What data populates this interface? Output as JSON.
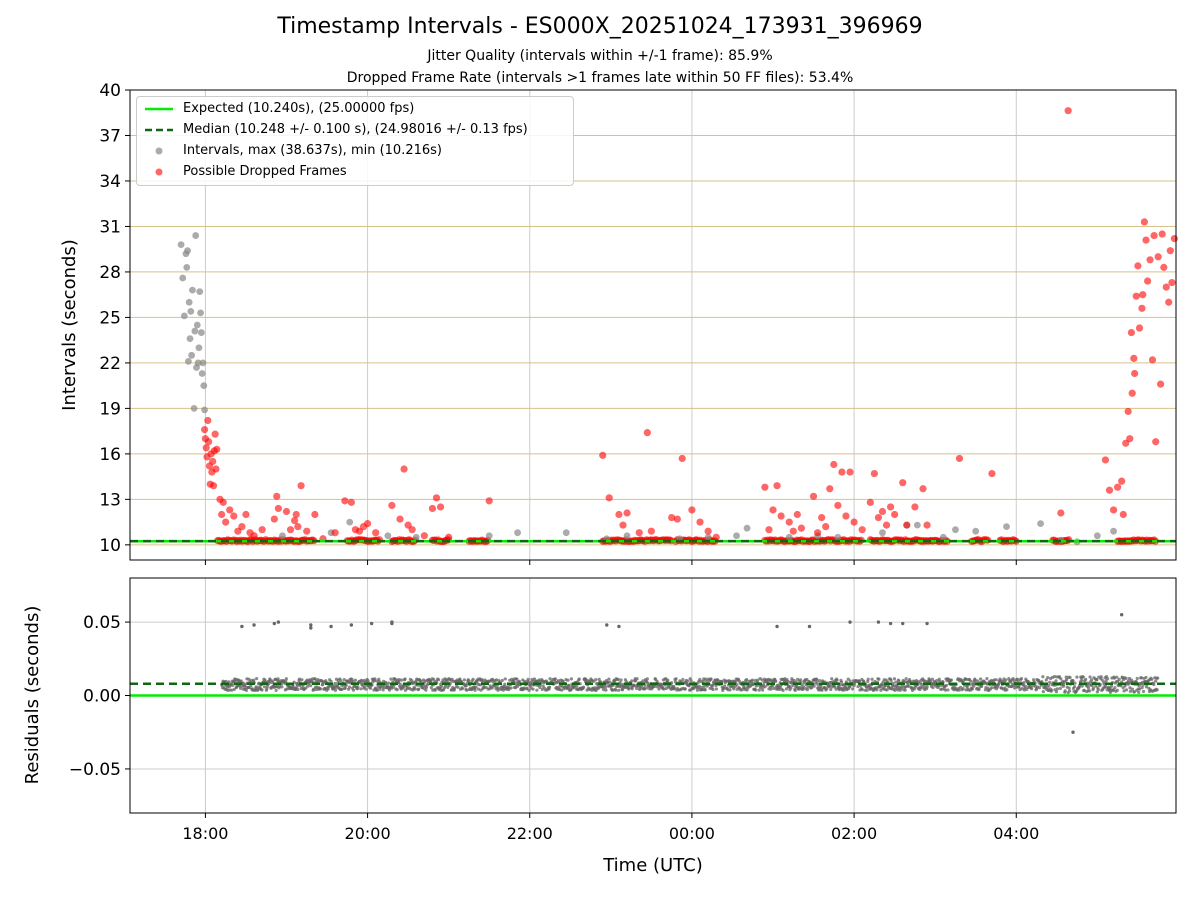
{
  "title": "Timestamp Intervals - ES000X_20251024_173931_396969",
  "subtitle_jitter": "Jitter Quality (intervals within +/-1 frame): 85.9%",
  "subtitle_dropped": "Dropped Frame Rate (intervals >1 frames late within 50 FF files): 53.4%",
  "colors": {
    "expected": "#00ee00",
    "median": "#116611",
    "intervals": "#888888",
    "dropped": "#ff0000",
    "residuals": "#666666",
    "hgrid_top": "#d6c288",
    "grid": "#cccccc"
  },
  "chart_data": [
    {
      "type": "scatter",
      "panel": "intervals",
      "title": "Timestamp Intervals - ES000X_20251024_173931_396969",
      "ylabel": "Intervals (seconds)",
      "xlabel": "",
      "ylim": [
        9.0,
        40.0
      ],
      "xlim_hours": [
        17.07,
        29.97
      ],
      "yticks": [
        10,
        13,
        16,
        19,
        22,
        25,
        28,
        31,
        34,
        37,
        40
      ],
      "grid": "on",
      "legend_placement": "top-left",
      "legend": {
        "expected": "Expected (10.240s), (25.00000 fps)",
        "median": "Median (10.248 +/- 0.100 s), (24.98016 +/- 0.13 fps)",
        "intervals": "Intervals, max (38.637s), min (10.216s)",
        "dropped": "Possible Dropped Frames"
      },
      "expected_value": 10.24,
      "median_value": 10.248,
      "series": [
        {
          "name": "Intervals, max (38.637s), min (10.216s)",
          "points": [
            [
              17.7,
              29.8
            ],
            [
              17.72,
              27.6
            ],
            [
              17.74,
              25.1
            ],
            [
              17.76,
              29.2
            ],
            [
              17.77,
              28.3
            ],
            [
              17.79,
              22.1
            ],
            [
              17.8,
              26.0
            ],
            [
              17.82,
              25.4
            ],
            [
              17.83,
              22.5
            ],
            [
              17.84,
              26.8
            ],
            [
              17.86,
              19.0
            ],
            [
              17.87,
              24.1
            ],
            [
              17.88,
              30.4
            ],
            [
              17.9,
              24.5
            ],
            [
              17.91,
              22.0
            ],
            [
              17.93,
              26.7
            ],
            [
              17.94,
              25.3
            ],
            [
              17.95,
              24.0
            ],
            [
              17.96,
              21.3
            ],
            [
              17.97,
              22.0
            ],
            [
              17.98,
              20.5
            ],
            [
              17.99,
              18.9
            ],
            [
              17.78,
              29.4
            ],
            [
              17.81,
              23.6
            ],
            [
              17.89,
              21.7
            ],
            [
              17.92,
              23.0
            ],
            [
              18.95,
              10.6
            ],
            [
              19.55,
              10.8
            ],
            [
              19.78,
              11.5
            ],
            [
              20.25,
              10.6
            ],
            [
              20.6,
              10.5
            ],
            [
              21.5,
              10.6
            ],
            [
              21.85,
              10.8
            ],
            [
              22.45,
              10.8
            ],
            [
              22.95,
              10.4
            ],
            [
              23.2,
              10.6
            ],
            [
              23.85,
              10.4
            ],
            [
              24.2,
              10.5
            ],
            [
              24.55,
              10.6
            ],
            [
              24.68,
              11.1
            ],
            [
              25.2,
              10.5
            ],
            [
              25.55,
              10.6
            ],
            [
              25.8,
              10.5
            ],
            [
              26.35,
              10.8
            ],
            [
              26.65,
              11.3
            ],
            [
              26.78,
              11.3
            ],
            [
              27.1,
              10.5
            ],
            [
              27.25,
              11.0
            ],
            [
              27.5,
              10.9
            ],
            [
              27.88,
              11.2
            ],
            [
              28.3,
              11.4
            ],
            [
              28.55,
              10.3
            ],
            [
              28.75,
              10.2
            ],
            [
              29.0,
              10.6
            ],
            [
              29.2,
              10.9
            ]
          ]
        },
        {
          "name": "Possible Dropped Frames",
          "points": [
            [
              17.99,
              17.6
            ],
            [
              18.0,
              17.0
            ],
            [
              18.01,
              16.4
            ],
            [
              18.02,
              15.8
            ],
            [
              18.03,
              18.2
            ],
            [
              18.04,
              16.8
            ],
            [
              18.05,
              15.2
            ],
            [
              18.06,
              14.0
            ],
            [
              18.07,
              16.0
            ],
            [
              18.08,
              14.8
            ],
            [
              18.09,
              15.5
            ],
            [
              18.1,
              13.9
            ],
            [
              18.11,
              16.2
            ],
            [
              18.12,
              17.3
            ],
            [
              18.13,
              15.0
            ],
            [
              18.14,
              16.3
            ],
            [
              18.18,
              13.0
            ],
            [
              18.2,
              12.0
            ],
            [
              18.22,
              12.8
            ],
            [
              18.25,
              11.5
            ],
            [
              18.3,
              12.3
            ],
            [
              18.35,
              11.9
            ],
            [
              18.4,
              10.9
            ],
            [
              18.45,
              11.2
            ],
            [
              18.5,
              12.0
            ],
            [
              18.55,
              10.8
            ],
            [
              18.6,
              10.6
            ],
            [
              18.7,
              11.0
            ],
            [
              18.85,
              11.7
            ],
            [
              18.88,
              13.2
            ],
            [
              18.9,
              12.4
            ],
            [
              19.0,
              12.2
            ],
            [
              19.05,
              11.0
            ],
            [
              19.1,
              11.6
            ],
            [
              19.12,
              12.0
            ],
            [
              19.14,
              11.2
            ],
            [
              19.18,
              13.9
            ],
            [
              19.25,
              10.9
            ],
            [
              19.35,
              12.0
            ],
            [
              19.45,
              10.4
            ],
            [
              19.6,
              10.8
            ],
            [
              19.72,
              12.9
            ],
            [
              19.8,
              12.8
            ],
            [
              19.85,
              11.0
            ],
            [
              19.9,
              10.9
            ],
            [
              19.95,
              11.2
            ],
            [
              20.0,
              11.4
            ],
            [
              20.1,
              10.8
            ],
            [
              20.3,
              12.6
            ],
            [
              20.4,
              11.7
            ],
            [
              20.45,
              15.0
            ],
            [
              20.5,
              11.3
            ],
            [
              20.55,
              11.0
            ],
            [
              20.7,
              10.6
            ],
            [
              20.8,
              12.4
            ],
            [
              20.85,
              13.1
            ],
            [
              20.9,
              12.5
            ],
            [
              21.0,
              10.5
            ],
            [
              21.5,
              12.9
            ],
            [
              22.9,
              15.9
            ],
            [
              22.98,
              13.1
            ],
            [
              23.1,
              12.0
            ],
            [
              23.15,
              11.3
            ],
            [
              23.2,
              12.1
            ],
            [
              23.35,
              10.8
            ],
            [
              23.45,
              17.4
            ],
            [
              23.5,
              10.9
            ],
            [
              23.75,
              11.8
            ],
            [
              23.82,
              11.7
            ],
            [
              23.88,
              15.7
            ],
            [
              24.0,
              12.3
            ],
            [
              24.1,
              11.5
            ],
            [
              24.2,
              10.9
            ],
            [
              24.3,
              10.5
            ],
            [
              24.9,
              13.8
            ],
            [
              24.95,
              11.0
            ],
            [
              25.0,
              12.3
            ],
            [
              25.05,
              13.9
            ],
            [
              25.1,
              11.9
            ],
            [
              25.2,
              11.5
            ],
            [
              25.25,
              10.9
            ],
            [
              25.3,
              12.0
            ],
            [
              25.35,
              11.1
            ],
            [
              25.5,
              13.2
            ],
            [
              25.55,
              10.8
            ],
            [
              25.6,
              11.8
            ],
            [
              25.65,
              11.2
            ],
            [
              25.7,
              13.7
            ],
            [
              25.75,
              15.3
            ],
            [
              25.8,
              12.6
            ],
            [
              25.85,
              14.8
            ],
            [
              25.9,
              11.9
            ],
            [
              25.95,
              14.8
            ],
            [
              26.0,
              11.5
            ],
            [
              26.1,
              11.0
            ],
            [
              26.2,
              12.8
            ],
            [
              26.25,
              14.7
            ],
            [
              26.3,
              11.8
            ],
            [
              26.35,
              12.2
            ],
            [
              26.4,
              11.3
            ],
            [
              26.45,
              12.5
            ],
            [
              26.5,
              12.0
            ],
            [
              26.6,
              14.1
            ],
            [
              26.65,
              11.3
            ],
            [
              26.75,
              12.5
            ],
            [
              26.85,
              13.7
            ],
            [
              26.9,
              11.3
            ],
            [
              27.3,
              15.7
            ],
            [
              27.7,
              14.7
            ],
            [
              28.55,
              12.1
            ],
            [
              29.1,
              15.6
            ],
            [
              29.15,
              13.6
            ],
            [
              29.2,
              12.3
            ],
            [
              29.25,
              13.8
            ],
            [
              29.3,
              14.2
            ],
            [
              29.32,
              12.0
            ],
            [
              29.35,
              16.7
            ],
            [
              29.38,
              18.8
            ],
            [
              29.4,
              17.0
            ],
            [
              29.42,
              24.0
            ],
            [
              29.45,
              22.3
            ],
            [
              29.48,
              26.4
            ],
            [
              29.5,
              28.4
            ],
            [
              29.52,
              24.3
            ],
            [
              29.55,
              25.6
            ],
            [
              29.58,
              31.3
            ],
            [
              29.6,
              30.1
            ],
            [
              29.62,
              27.4
            ],
            [
              29.65,
              28.8
            ],
            [
              29.68,
              22.2
            ],
            [
              29.7,
              30.4
            ],
            [
              29.72,
              16.8
            ],
            [
              29.75,
              29.0
            ],
            [
              29.78,
              20.6
            ],
            [
              29.8,
              30.5
            ],
            [
              29.82,
              28.3
            ],
            [
              29.85,
              27.0
            ],
            [
              29.88,
              26.0
            ],
            [
              29.9,
              29.4
            ],
            [
              29.92,
              27.3
            ],
            [
              29.95,
              30.2
            ],
            [
              29.43,
              20.0
            ],
            [
              29.46,
              21.3
            ],
            [
              29.56,
              26.5
            ],
            [
              28.64,
              38.637
            ]
          ]
        }
      ]
    },
    {
      "type": "scatter",
      "panel": "residuals",
      "ylabel": "Residuals (seconds)",
      "xlabel": "Time (UTC)",
      "ylim": [
        -0.08,
        0.08
      ],
      "yticks": [
        -0.05,
        0.0,
        0.05
      ],
      "ytick_labels": [
        "−0.05",
        "0.00",
        "0.05"
      ],
      "xticks_hours": [
        18,
        20,
        22,
        24,
        26,
        28
      ],
      "xtick_labels": [
        "18:00",
        "20:00",
        "22:00",
        "00:00",
        "02:00",
        "04:00"
      ],
      "expected_value": 0.0,
      "median_value": 0.008,
      "band": {
        "x_start": 18.2,
        "x_end": 29.75,
        "center": 0.0075,
        "spread": 0.004
      },
      "outliers": [
        [
          18.45,
          0.047
        ],
        [
          18.6,
          0.048
        ],
        [
          18.85,
          0.049
        ],
        [
          18.9,
          0.05
        ],
        [
          19.3,
          0.046
        ],
        [
          19.3,
          0.048
        ],
        [
          19.55,
          0.047
        ],
        [
          19.8,
          0.048
        ],
        [
          20.05,
          0.049
        ],
        [
          20.3,
          0.049
        ],
        [
          20.3,
          0.05
        ],
        [
          22.95,
          0.048
        ],
        [
          23.1,
          0.047
        ],
        [
          25.05,
          0.047
        ],
        [
          25.45,
          0.047
        ],
        [
          25.95,
          0.05
        ],
        [
          26.3,
          0.05
        ],
        [
          26.45,
          0.049
        ],
        [
          26.6,
          0.049
        ],
        [
          26.9,
          0.049
        ],
        [
          29.3,
          0.055
        ],
        [
          28.7,
          -0.025
        ]
      ]
    }
  ]
}
